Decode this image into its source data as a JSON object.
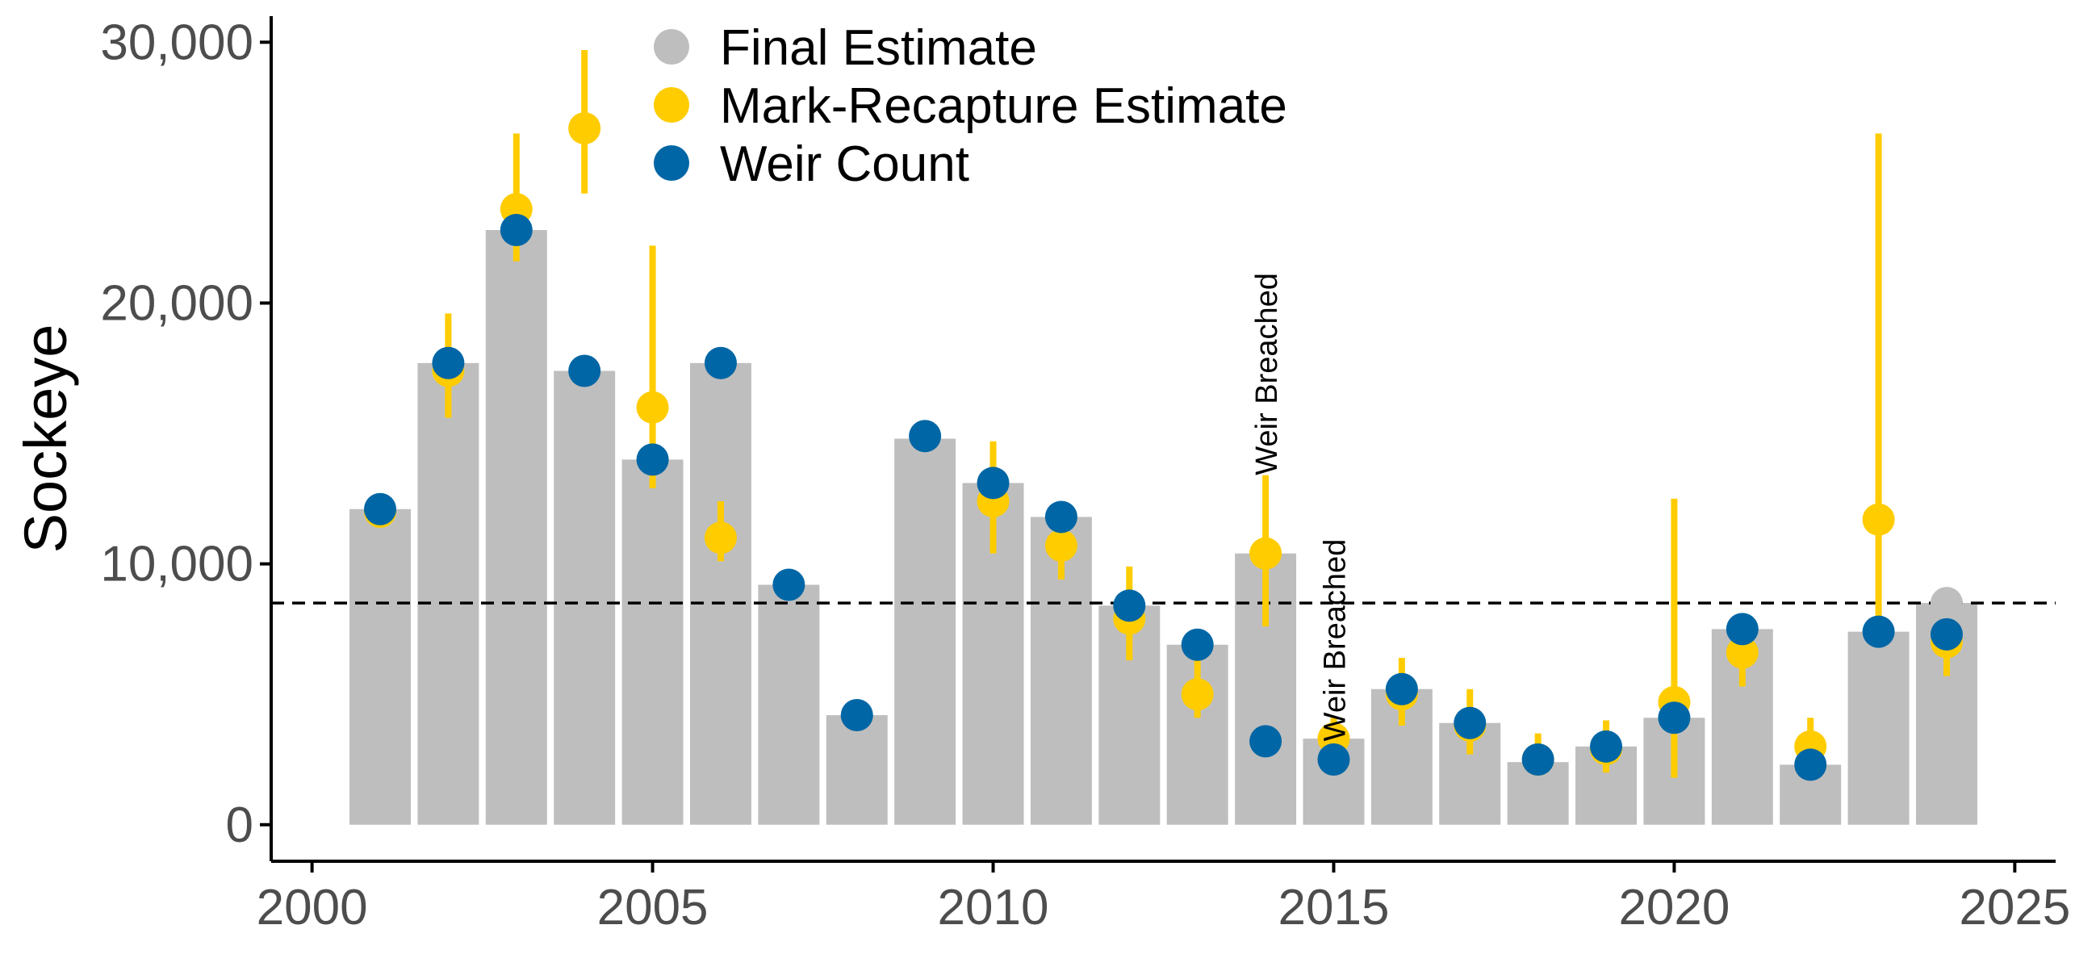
{
  "chart_data": {
    "type": "bar",
    "ylabel": "Sockeye",
    "xlabel": "",
    "xlim": [
      1999.4,
      2025.6
    ],
    "ylim": [
      -1400,
      31000
    ],
    "x_ticks": [
      2000,
      2005,
      2010,
      2015,
      2020,
      2025
    ],
    "x_tick_labels": [
      "2000",
      "2005",
      "2010",
      "2015",
      "2020",
      "2025"
    ],
    "y_ticks": [
      0,
      10000,
      20000,
      30000
    ],
    "y_tick_labels": [
      "0",
      "10,000",
      "20,000",
      "30,000"
    ],
    "grid": false,
    "reference_line": {
      "y": 8500,
      "style": "dashed"
    },
    "legend": {
      "placement": "top",
      "entries": [
        {
          "label": "Final Estimate",
          "color": "#BEBEBE"
        },
        {
          "label": "Mark-Recapture Estimate",
          "color": "#FFCC00"
        },
        {
          "label": "Weir Count",
          "color": "#0066A5"
        }
      ]
    },
    "series": [
      {
        "name": "Final Estimate",
        "kind": "bar",
        "color": "#BEBEBE",
        "x": [
          2001,
          2002,
          2003,
          2004,
          2005,
          2006,
          2007,
          2008,
          2009,
          2010,
          2011,
          2012,
          2013,
          2014,
          2015,
          2016,
          2017,
          2018,
          2019,
          2020,
          2021,
          2022,
          2023,
          2024
        ],
        "values": [
          12100,
          17700,
          22800,
          17400,
          14000,
          17700,
          9200,
          4200,
          14800,
          13100,
          11800,
          8400,
          6900,
          10400,
          3300,
          5200,
          3900,
          2400,
          3000,
          4100,
          7500,
          2300,
          7400,
          8500
        ]
      },
      {
        "name": "Mark-Recapture Estimate",
        "kind": "point_errorbar",
        "color": "#FFCC00",
        "x": [
          2001,
          2002,
          2003,
          2004,
          2005,
          2006,
          2010,
          2011,
          2012,
          2013,
          2014,
          2015,
          2016,
          2017,
          2018,
          2019,
          2020,
          2021,
          2022,
          2023,
          2024
        ],
        "values": [
          12000,
          17400,
          23600,
          26700,
          16000,
          11000,
          12400,
          10700,
          7900,
          5000,
          10400,
          3300,
          5000,
          3800,
          2500,
          2900,
          4700,
          6600,
          3000,
          11700,
          7000
        ],
        "lower": [
          11500,
          15600,
          21600,
          24200,
          12900,
          10100,
          10400,
          9400,
          6300,
          4100,
          7600,
          2500,
          3800,
          2700,
          1900,
          2000,
          1800,
          5300,
          2300,
          7000,
          5700
        ],
        "upper": [
          12500,
          19600,
          26500,
          29700,
          22200,
          12400,
          14700,
          12100,
          9900,
          6400,
          13400,
          4100,
          6400,
          5200,
          3500,
          4000,
          12500,
          8000,
          4100,
          26500,
          8500
        ]
      },
      {
        "name": "Weir Count",
        "kind": "point",
        "color": "#0066A5",
        "x": [
          2001,
          2002,
          2003,
          2004,
          2005,
          2006,
          2007,
          2008,
          2009,
          2010,
          2011,
          2012,
          2013,
          2014,
          2015,
          2016,
          2017,
          2018,
          2019,
          2020,
          2021,
          2022,
          2023,
          2024
        ],
        "values": [
          12100,
          17700,
          22800,
          17400,
          14000,
          17700,
          9200,
          4200,
          14900,
          13100,
          11800,
          8400,
          6900,
          3200,
          2500,
          5200,
          3900,
          2500,
          3000,
          4100,
          7500,
          2300,
          7400,
          7300
        ]
      }
    ],
    "extra_points": [
      {
        "series": "Final Estimate",
        "x": 2024,
        "y": 8500
      }
    ],
    "annotations": [
      {
        "text": "Weir Breached",
        "x": 2014,
        "y": 13400,
        "rotation": -90
      },
      {
        "text": "Weir Breached",
        "x": 2015,
        "y": 3200,
        "rotation": -90
      }
    ]
  }
}
